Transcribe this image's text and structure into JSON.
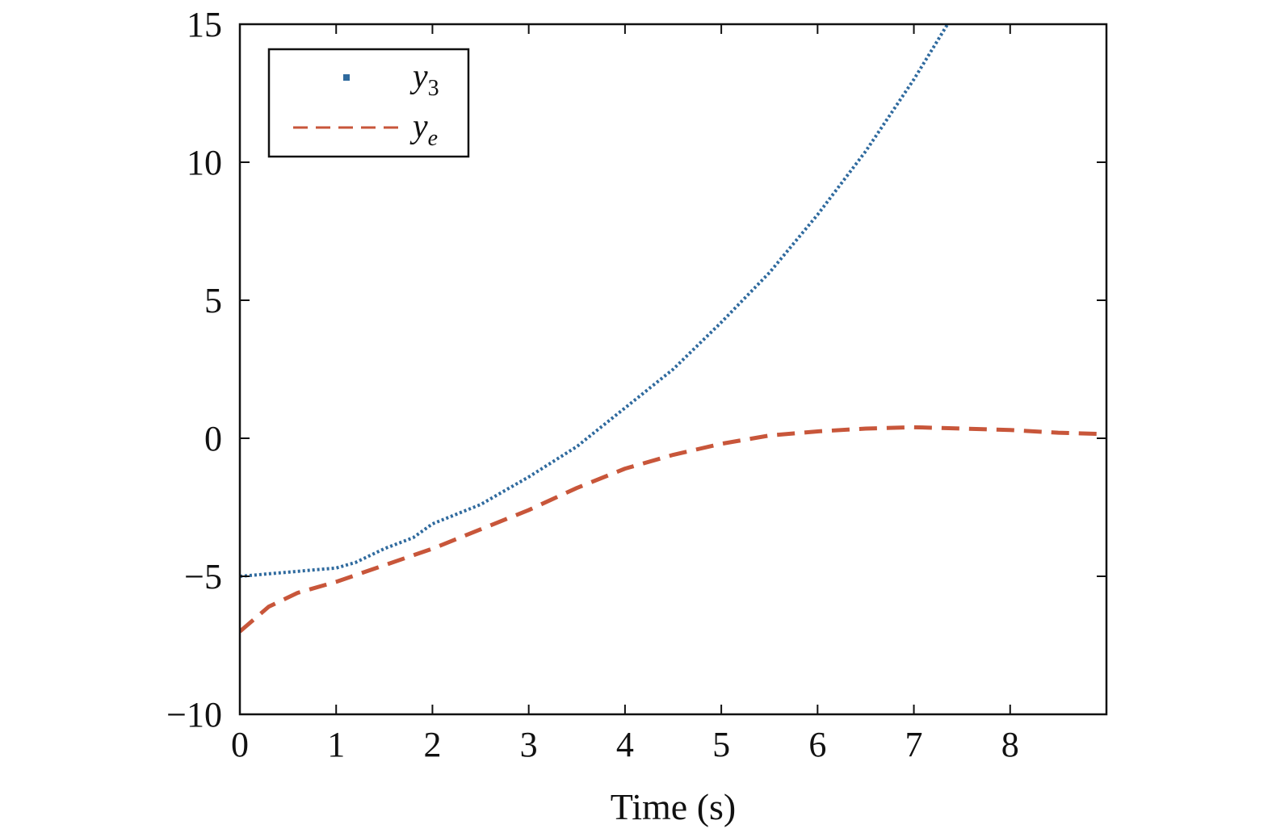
{
  "chart_data": {
    "type": "line",
    "title": "",
    "xlabel": "Time (s)",
    "ylabel": "",
    "xlim": [
      0,
      9
    ],
    "ylim": [
      -10,
      15
    ],
    "xticks": [
      0,
      1,
      2,
      3,
      4,
      5,
      6,
      7,
      8
    ],
    "xtick_labels": [
      "0",
      "1",
      "2",
      "3",
      "4",
      "5",
      "6",
      "7",
      "8"
    ],
    "yticks": [
      -10,
      -5,
      0,
      5,
      10,
      15
    ],
    "ytick_labels": [
      "−10",
      "−5",
      "0",
      "5",
      "10",
      "15"
    ],
    "grid": false,
    "legend": {
      "placement": "top-left",
      "entries": [
        {
          "base": "y",
          "sub": "3"
        },
        {
          "base": "y",
          "sub": "e"
        }
      ]
    },
    "series": [
      {
        "name": "y3",
        "style": "dotted",
        "color": "#2f6a9e",
        "x": [
          0,
          0.5,
          1.0,
          1.2,
          1.5,
          1.8,
          2.0,
          2.5,
          3.0,
          3.5,
          4.0,
          4.5,
          5.0,
          5.5,
          6.0,
          6.5,
          7.0,
          7.35
        ],
        "y": [
          -5.0,
          -4.85,
          -4.7,
          -4.5,
          -4.0,
          -3.6,
          -3.1,
          -2.4,
          -1.4,
          -0.3,
          1.1,
          2.5,
          4.2,
          6.0,
          8.1,
          10.4,
          13.0,
          15.0
        ]
      },
      {
        "name": "ye",
        "style": "dashed",
        "color": "#c8563a",
        "x": [
          0,
          0.3,
          0.6,
          1.0,
          1.5,
          2.0,
          2.5,
          3.0,
          3.5,
          4.0,
          4.5,
          5.0,
          5.5,
          6.0,
          6.5,
          7.0,
          7.5,
          8.0,
          8.5,
          9.0
        ],
        "y": [
          -7.0,
          -6.1,
          -5.6,
          -5.2,
          -4.6,
          -4.0,
          -3.3,
          -2.6,
          -1.8,
          -1.1,
          -0.6,
          -0.2,
          0.1,
          0.25,
          0.35,
          0.4,
          0.35,
          0.3,
          0.2,
          0.15
        ]
      }
    ]
  }
}
